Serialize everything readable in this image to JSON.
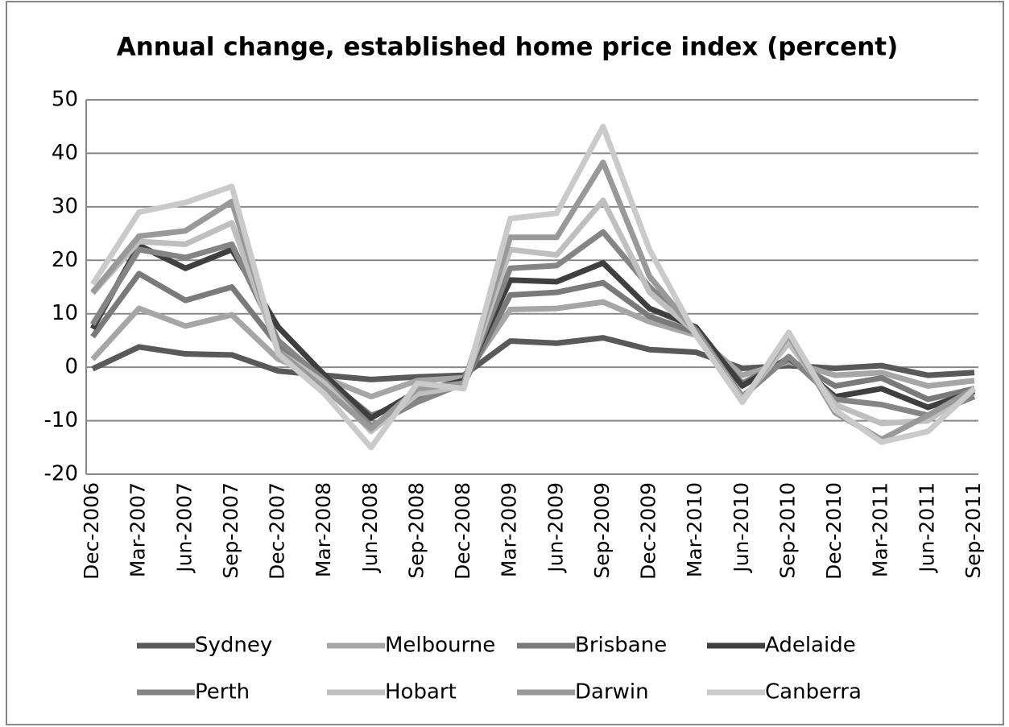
{
  "chart_data": {
    "type": "line",
    "title": "Annual change, established home price index (percent)",
    "categories": [
      "Dec-2006",
      "Mar-2007",
      "Jun-2007",
      "Sep-2007",
      "Dec-2007",
      "Mar-2008",
      "Jun-2008",
      "Sep-2008",
      "Dec-2008",
      "Mar-2009",
      "Jun-2009",
      "Sep-2009",
      "Dec-2009",
      "Mar-2010",
      "Jun-2010",
      "Sep-2010",
      "Dec-2010",
      "Mar-2011",
      "Jun-2011",
      "Sep-2011"
    ],
    "series": [
      {
        "name": "Sydney",
        "color": "#595959",
        "values": [
          -0.3,
          3.8,
          2.5,
          2.3,
          -0.7,
          -1.5,
          -2.3,
          -1.8,
          -1.5,
          4.9,
          4.5,
          5.5,
          3.3,
          2.8,
          -0.2,
          0.3,
          -0.2,
          0.3,
          -1.5,
          -1.0
        ]
      },
      {
        "name": "Melbourne",
        "color": "#a6a6a6",
        "values": [
          1.5,
          11,
          7.7,
          9.8,
          1.5,
          -2,
          -5.5,
          -2.5,
          -2,
          10.8,
          11,
          12.2,
          8.5,
          6,
          -1.5,
          1,
          -1.5,
          -1,
          -3.5,
          -2.5
        ]
      },
      {
        "name": "Brisbane",
        "color": "#7a7a7a",
        "values": [
          5.7,
          17.5,
          12.5,
          15,
          4,
          -2,
          -9,
          -6,
          -3,
          13.5,
          14,
          15.8,
          9.5,
          6.5,
          -3,
          1.5,
          -3.5,
          -2,
          -6,
          -4
        ]
      },
      {
        "name": "Adelaide",
        "color": "#3f3f3f",
        "values": [
          7.2,
          22.8,
          18.5,
          22,
          7.5,
          -1.5,
          -9.5,
          -4.5,
          -2.5,
          16.3,
          16,
          19.5,
          11,
          7.5,
          -3.5,
          1.8,
          -5.5,
          -4,
          -7.5,
          -4.5
        ]
      },
      {
        "name": "Perth",
        "color": "#858585",
        "values": [
          8,
          22,
          20.5,
          23,
          5,
          -2.5,
          -11,
          -6.5,
          -3,
          18.5,
          19,
          25.3,
          15,
          7,
          -5.5,
          2,
          -6,
          -7,
          -9,
          -5.5
        ]
      },
      {
        "name": "Hobart",
        "color": "#bfbfbf",
        "values": [
          13.8,
          23.5,
          23,
          27,
          3,
          -3,
          -12,
          -5,
          -3.5,
          22,
          21,
          31.2,
          14,
          6.5,
          -6,
          4.5,
          -7,
          -10.5,
          -10,
          -4
        ]
      },
      {
        "name": "Darwin",
        "color": "#999999",
        "values": [
          14,
          24.5,
          25.5,
          31,
          3,
          -4,
          -11.5,
          -4,
          -3,
          24.3,
          24.3,
          38.3,
          17,
          6.5,
          -6.5,
          6,
          -8.5,
          -13.5,
          -9,
          -4
        ]
      },
      {
        "name": "Canberra",
        "color": "#cacaca",
        "values": [
          15.5,
          29,
          30.8,
          33.8,
          2.5,
          -5,
          -15,
          -3,
          -4,
          27.8,
          28.8,
          45,
          22,
          6,
          -6.5,
          6.5,
          -8,
          -14,
          -12,
          -4
        ]
      }
    ],
    "ylim": [
      -20,
      50
    ],
    "yticks": [
      -20,
      -10,
      0,
      10,
      20,
      30,
      40,
      50
    ],
    "grid": true,
    "legend": "bottom"
  }
}
